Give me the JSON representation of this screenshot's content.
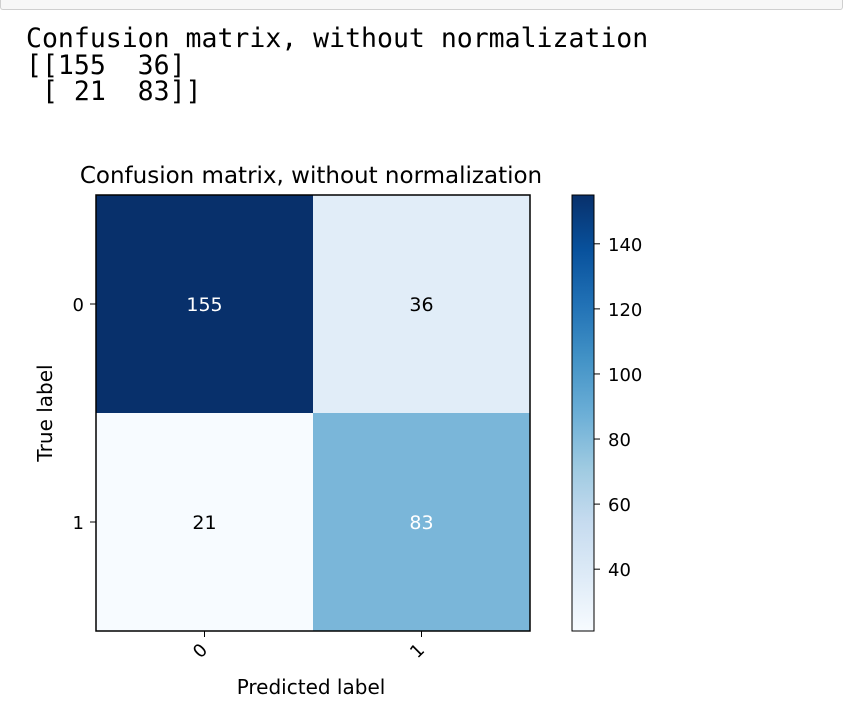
{
  "stdout": {
    "lines": [
      "Confusion matrix, without normalization",
      "[[155  36]",
      " [ 21  83]]"
    ]
  },
  "chart_data": {
    "type": "heatmap",
    "title": "Confusion matrix, without normalization",
    "xlabel": "Predicted label",
    "ylabel": "True label",
    "x_categories": [
      "0",
      "1"
    ],
    "y_categories": [
      "0",
      "1"
    ],
    "values": [
      [
        155,
        36
      ],
      [
        21,
        83
      ]
    ],
    "colormap": "Blues",
    "colorbar": {
      "range": [
        21,
        155
      ],
      "ticks": [
        40,
        60,
        80,
        100,
        120,
        140
      ]
    }
  }
}
